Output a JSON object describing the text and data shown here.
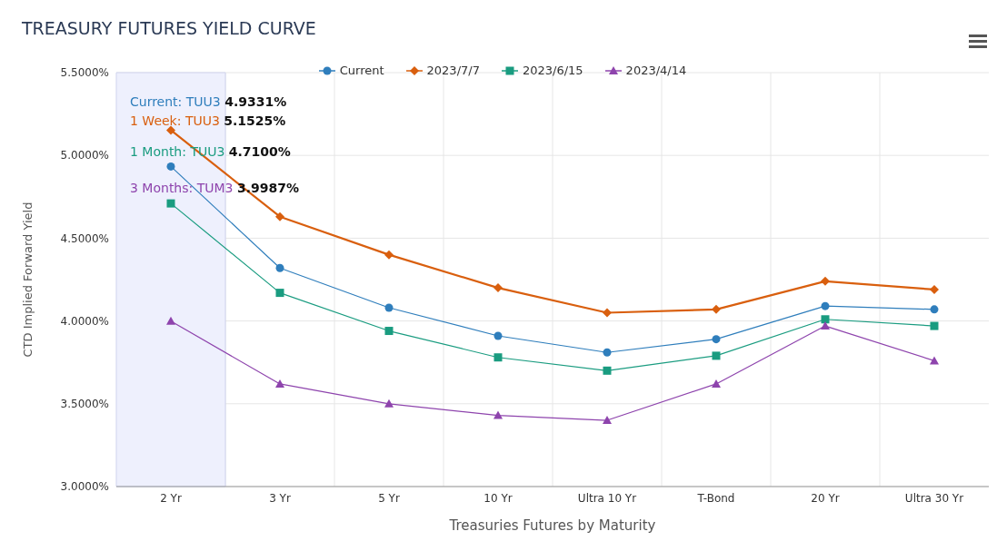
{
  "chart_data": {
    "type": "line",
    "title": "TREASURY FUTURES YIELD CURVE",
    "xlabel": "Treasuries Futures by Maturity",
    "ylabel": "CTD Implied Forward Yield",
    "categories": [
      "2 Yr",
      "3 Yr",
      "5 Yr",
      "10 Yr",
      "Ultra 10 Yr",
      "T-Bond",
      "20 Yr",
      "Ultra 30 Yr"
    ],
    "series": [
      {
        "name": "Current",
        "color": "#2f7ebc",
        "marker": "circle",
        "values": [
          4.9331,
          4.32,
          4.08,
          3.91,
          3.81,
          3.89,
          4.09,
          4.07
        ]
      },
      {
        "name": "2023/7/7",
        "color": "#d95f0e",
        "marker": "diamond",
        "values": [
          5.1525,
          4.63,
          4.4,
          4.2,
          4.05,
          4.07,
          4.24,
          4.19
        ]
      },
      {
        "name": "2023/6/15",
        "color": "#1a9c80",
        "marker": "square",
        "values": [
          4.71,
          4.17,
          3.94,
          3.78,
          3.7,
          3.79,
          4.01,
          3.97
        ]
      },
      {
        "name": "2023/4/14",
        "color": "#8e44ad",
        "marker": "triangle",
        "values": [
          3.9987,
          3.62,
          3.5,
          3.43,
          3.4,
          3.62,
          3.97,
          3.76
        ]
      }
    ],
    "ylim": [
      3.0,
      5.5
    ],
    "yticks": [
      {
        "value": 3.0,
        "label": "3.0000%"
      },
      {
        "value": 3.5,
        "label": "3.5000%"
      },
      {
        "value": 4.0,
        "label": "4.0000%"
      },
      {
        "value": 4.5,
        "label": "4.5000%"
      },
      {
        "value": 5.0,
        "label": "5.0000%"
      },
      {
        "value": 5.5,
        "label": "5.5000%"
      }
    ],
    "bands": [
      {
        "axis": "x",
        "from": "2 Yr",
        "to": "2 Yr",
        "color": "#eef0fd"
      }
    ],
    "annotations": [
      "Current: TUU3 4.9331%",
      "1 Week: TUU3 5.1525%",
      "1 Month: TUU3 4.7100%",
      "3 Months: TUM3 3.9987%"
    ],
    "grid": true,
    "legend": "top"
  }
}
